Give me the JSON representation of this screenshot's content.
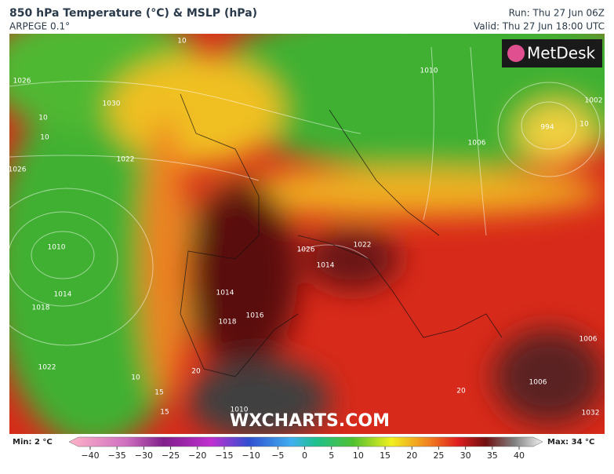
{
  "header": {
    "title": "850 hPa Temperature (°C) & MSLP (hPa)",
    "model": "ARPEGE 0.1°",
    "run": "Run: Thu 27 Jun 06Z",
    "valid": "Valid: Thu 27 Jun 18:00 UTC"
  },
  "map": {
    "watermark": "WXCHARTS.COM",
    "logo": "MetDesk",
    "labels": [
      "10",
      "10",
      "10",
      "1030",
      "1026",
      "1026",
      "1022",
      "1010",
      "1014",
      "1018",
      "1022",
      "10",
      "15",
      "15",
      "994",
      "10",
      "1002",
      "1010",
      "1006",
      "1014",
      "1018",
      "1016",
      "1014",
      "1026",
      "1022",
      "1006",
      "1006",
      "1032",
      "20",
      "20",
      "1010"
    ]
  },
  "legend": {
    "min": "Min: 2 °C",
    "max": "Max: 34 °C",
    "ticks": [
      "−40",
      "−35",
      "−30",
      "−25",
      "−20",
      "−15",
      "−10",
      "−5",
      "0",
      "5",
      "10",
      "15",
      "20",
      "25",
      "30",
      "35",
      "40"
    ]
  }
}
